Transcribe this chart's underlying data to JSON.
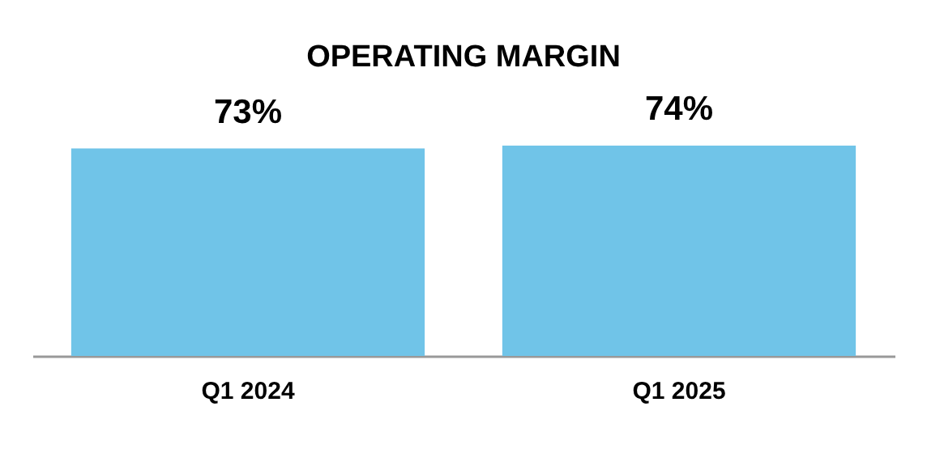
{
  "chart_data": {
    "type": "bar",
    "title": "OPERATING MARGIN",
    "categories": [
      "Q1 2024",
      "Q1 2025"
    ],
    "values": [
      73,
      74
    ],
    "value_labels": [
      "73%",
      "74%"
    ],
    "color": "#70c4e8"
  }
}
